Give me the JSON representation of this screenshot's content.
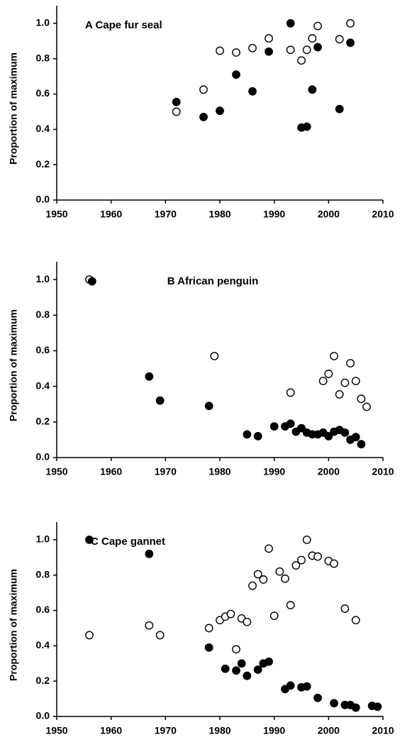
{
  "chart_data": [
    {
      "type": "scatter",
      "title": "A Cape fur seal",
      "y_label": "Proportion of maximum",
      "title_align": "left",
      "xlim": [
        1950,
        2010
      ],
      "xticks": [
        1950,
        1960,
        1970,
        1980,
        1990,
        2000,
        2010
      ],
      "ylim": [
        0,
        1.1
      ],
      "yticks": [
        {
          "value": 0,
          "label": "0.0"
        },
        0.2,
        0.4,
        0.6,
        0.8,
        {
          "value": 1,
          "label": "1.0"
        }
      ],
      "grid": false,
      "series": [
        {
          "color": "#000000",
          "fill": "#ffffff",
          "x": [
            1972,
            1977,
            1980,
            1983,
            1986,
            1989,
            1993,
            1995,
            1996,
            1997,
            1998,
            2002,
            2004
          ],
          "values": [
            0.5,
            0.625,
            0.845,
            0.835,
            0.86,
            0.915,
            0.85,
            0.79,
            0.85,
            0.915,
            0.985,
            0.91,
            1.0
          ]
        },
        {
          "color": "#000000",
          "fill": "#000000",
          "x": [
            1972,
            1977,
            1980,
            1983,
            1986,
            1989,
            1993,
            1995,
            1996,
            1997,
            1998,
            2002,
            2004
          ],
          "values": [
            0.555,
            0.47,
            0.505,
            0.71,
            0.615,
            0.84,
            1.0,
            0.41,
            0.415,
            0.625,
            0.865,
            0.515,
            0.89
          ]
        }
      ]
    },
    {
      "type": "scatter",
      "title": "B African penguin",
      "y_label": "Proportion of maximum",
      "title_align": "center",
      "xlim": [
        1950,
        2010
      ],
      "xticks": [
        1950,
        1960,
        1970,
        1980,
        1990,
        2000,
        2010
      ],
      "ylim": [
        0,
        1.1
      ],
      "yticks": [
        {
          "value": 0,
          "label": "0.0"
        },
        0.2,
        0.4,
        0.6,
        0.8,
        {
          "value": 1,
          "label": "1.0"
        }
      ],
      "grid": false,
      "series": [
        {
          "color": "#000000",
          "fill": "#ffffff",
          "x": [
            1956,
            1979,
            1993,
            1999,
            2000,
            2001,
            2002,
            2003,
            2004,
            2005,
            2006,
            2007
          ],
          "values": [
            1.0,
            0.57,
            0.365,
            0.43,
            0.47,
            0.57,
            0.355,
            0.42,
            0.53,
            0.43,
            0.33,
            0.285
          ]
        },
        {
          "color": "#000000",
          "fill": "#000000",
          "x": [
            1956.5,
            1967,
            1969,
            1978,
            1985,
            1987,
            1990,
            1992,
            1993,
            1994,
            1995,
            1996,
            1997,
            1998,
            1999,
            2000,
            2001,
            2002,
            2003,
            2004,
            2005,
            2006
          ],
          "values": [
            0.99,
            0.455,
            0.32,
            0.29,
            0.13,
            0.12,
            0.175,
            0.175,
            0.19,
            0.145,
            0.165,
            0.14,
            0.13,
            0.13,
            0.14,
            0.12,
            0.145,
            0.155,
            0.14,
            0.1,
            0.115,
            0.075
          ]
        }
      ]
    },
    {
      "type": "scatter",
      "title": "C Cape gannet",
      "y_label": "Proportion of maximum",
      "title_align": "left",
      "xlim": [
        1950,
        2010
      ],
      "xticks": [
        1950,
        1960,
        1970,
        1980,
        1990,
        2000,
        2010
      ],
      "ylim": [
        0,
        1.1
      ],
      "yticks": [
        {
          "value": 0,
          "label": "0.0"
        },
        0.2,
        0.4,
        0.6,
        0.8,
        {
          "value": 1,
          "label": "1.0"
        }
      ],
      "grid": false,
      "series": [
        {
          "color": "#000000",
          "fill": "#ffffff",
          "x": [
            1956,
            1967,
            1969,
            1978,
            1980,
            1981,
            1982,
            1983,
            1984,
            1985,
            1986,
            1987,
            1988,
            1989,
            1990,
            1991,
            1992,
            1993,
            1994,
            1995,
            1996,
            1997,
            1998,
            2000,
            2001,
            2003,
            2005
          ],
          "values": [
            0.46,
            0.515,
            0.46,
            0.5,
            0.545,
            0.565,
            0.58,
            0.38,
            0.555,
            0.535,
            0.74,
            0.805,
            0.775,
            0.95,
            0.57,
            0.82,
            0.78,
            0.63,
            0.855,
            0.885,
            1.0,
            0.91,
            0.905,
            0.88,
            0.865,
            0.61,
            0.545
          ]
        },
        {
          "color": "#000000",
          "fill": "#000000",
          "x": [
            1956,
            1967,
            1978,
            1981,
            1983,
            1984,
            1985,
            1987,
            1988,
            1989,
            1992,
            1993,
            1995,
            1996,
            1998,
            2001,
            2003,
            2004,
            2005,
            2008,
            2009
          ],
          "values": [
            1.0,
            0.92,
            0.39,
            0.27,
            0.26,
            0.3,
            0.23,
            0.265,
            0.3,
            0.31,
            0.155,
            0.175,
            0.165,
            0.17,
            0.105,
            0.075,
            0.065,
            0.065,
            0.05,
            0.06,
            0.055
          ]
        }
      ]
    }
  ]
}
